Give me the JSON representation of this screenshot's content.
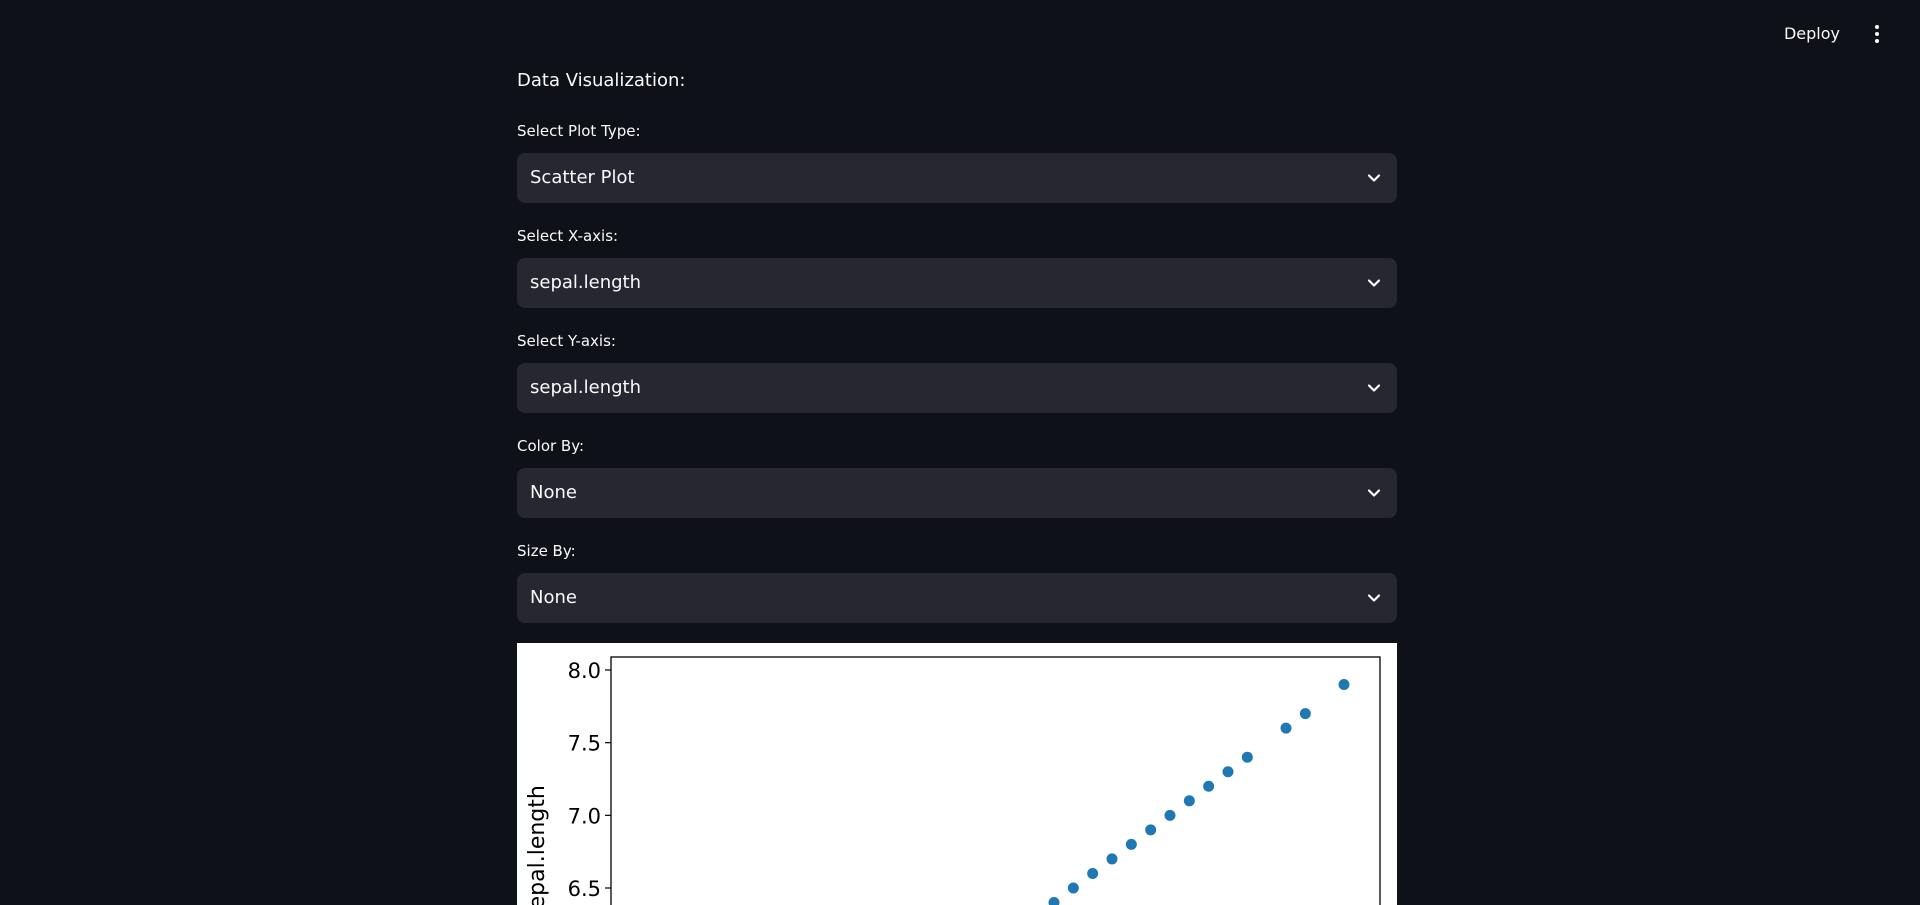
{
  "header": {
    "deploy_label": "Deploy",
    "menu_icon": "vertical-ellipsis-icon"
  },
  "main": {
    "section_title": "Data Visualization:",
    "fields": [
      {
        "label": "Select Plot Type:",
        "value": "Scatter Plot"
      },
      {
        "label": "Select X-axis:",
        "value": "sepal.length"
      },
      {
        "label": "Select Y-axis:",
        "value": "sepal.length"
      },
      {
        "label": "Color By:",
        "value": "None"
      },
      {
        "label": "Size By:",
        "value": "None"
      }
    ]
  },
  "colors": {
    "background": "#0e1117",
    "select_bg": "#262730",
    "marker": "#1f77b4"
  },
  "chart_data": {
    "type": "scatter",
    "title": "",
    "xlabel": "",
    "ylabel": "sepal.length",
    "ylim_visible": [
      6.25,
      8.1
    ],
    "yticks": [
      8.0,
      7.5,
      7.0,
      6.5
    ],
    "ytick_labels": [
      "8.0",
      "7.5",
      "7.0",
      "6.5"
    ],
    "points": [
      {
        "x": 6.4,
        "y": 6.4
      },
      {
        "x": 6.5,
        "y": 6.5
      },
      {
        "x": 6.6,
        "y": 6.6
      },
      {
        "x": 6.7,
        "y": 6.7
      },
      {
        "x": 6.8,
        "y": 6.8
      },
      {
        "x": 6.9,
        "y": 6.9
      },
      {
        "x": 7.0,
        "y": 7.0
      },
      {
        "x": 7.1,
        "y": 7.1
      },
      {
        "x": 7.2,
        "y": 7.2
      },
      {
        "x": 7.3,
        "y": 7.3
      },
      {
        "x": 7.4,
        "y": 7.4
      },
      {
        "x": 7.6,
        "y": 7.6
      },
      {
        "x": 7.7,
        "y": 7.7
      },
      {
        "x": 7.9,
        "y": 7.9
      }
    ]
  }
}
